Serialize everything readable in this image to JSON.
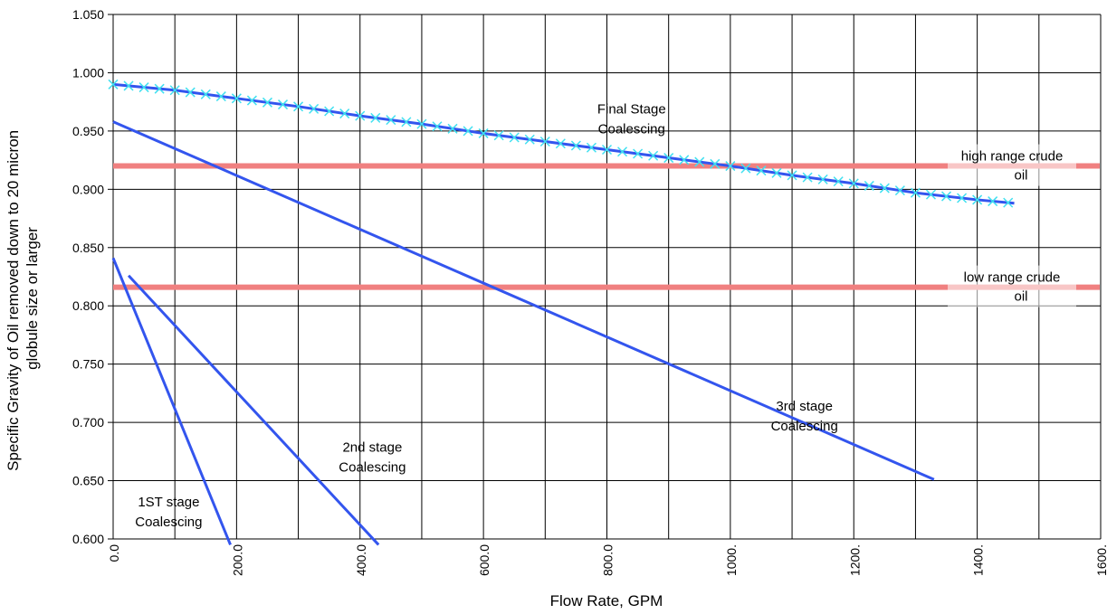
{
  "chart_data": {
    "type": "line",
    "title": "",
    "xlabel": "Flow Rate, GPM",
    "ylabel": [
      "Specific Gravity of Oil removed down to 20 micron",
      "globule size or larger"
    ],
    "xlim": [
      0,
      1600
    ],
    "ylim": [
      0.6,
      1.05
    ],
    "grid": true,
    "x_ticks": [
      {
        "value": 0,
        "label": "0.0"
      },
      {
        "value": 200,
        "label": "200.0"
      },
      {
        "value": 400,
        "label": "400.0"
      },
      {
        "value": 600,
        "label": "600.0"
      },
      {
        "value": 800,
        "label": "800.0"
      },
      {
        "value": 1000,
        "label": "1000."
      },
      {
        "value": 1200,
        "label": "1200."
      },
      {
        "value": 1400,
        "label": "1400."
      },
      {
        "value": 1600,
        "label": "1600."
      }
    ],
    "y_ticks": [
      {
        "value": 0.6,
        "label": "0.600"
      },
      {
        "value": 0.65,
        "label": "0.650"
      },
      {
        "value": 0.7,
        "label": "0.700"
      },
      {
        "value": 0.75,
        "label": "0.750"
      },
      {
        "value": 0.8,
        "label": "0.800"
      },
      {
        "value": 0.85,
        "label": "0.850"
      },
      {
        "value": 0.9,
        "label": "0.900"
      },
      {
        "value": 0.95,
        "label": "0.950"
      },
      {
        "value": 1.0,
        "label": "1.000"
      },
      {
        "value": 1.05,
        "label": "1.050"
      }
    ],
    "series": [
      {
        "id": "final",
        "color": "#3355ee",
        "marker": "x",
        "marker_color": "#40e0f0",
        "x": [
          0,
          100,
          200,
          300,
          400,
          500,
          600,
          700,
          800,
          900,
          1000,
          1100,
          1200,
          1300,
          1400,
          1460
        ],
        "y": [
          0.99,
          0.985,
          0.978,
          0.971,
          0.963,
          0.956,
          0.948,
          0.941,
          0.934,
          0.927,
          0.92,
          0.912,
          0.905,
          0.897,
          0.891,
          0.888
        ]
      },
      {
        "id": "third",
        "color": "#3355ee",
        "x": [
          0,
          1330
        ],
        "y": [
          0.958,
          0.651
        ]
      },
      {
        "id": "second",
        "color": "#3355ee",
        "x": [
          25,
          430
        ],
        "y": [
          0.826,
          0.595
        ]
      },
      {
        "id": "first",
        "color": "#3355ee",
        "x": [
          0,
          190
        ],
        "y": [
          0.841,
          0.595
        ]
      }
    ],
    "reference_lines": [
      {
        "id": "high",
        "y": 0.92,
        "color": "#f08080",
        "label": [
          "high range crude",
          "oil"
        ]
      },
      {
        "id": "low",
        "y": 0.816,
        "color": "#f08080",
        "label": [
          "low range crude",
          "oil"
        ]
      }
    ],
    "annotations": [
      {
        "lines": [
          "Final Stage",
          "Coalescing"
        ],
        "x": 840,
        "y": 0.965
      },
      {
        "lines": [
          "3rd stage",
          "Coalescing"
        ],
        "x": 1120,
        "y": 0.71
      },
      {
        "lines": [
          "2nd stage",
          "Coalescing"
        ],
        "x": 420,
        "y": 0.675
      },
      {
        "lines": [
          "1ST stage",
          "Coalescing"
        ],
        "x": 90,
        "y": 0.628
      }
    ],
    "colors": {
      "grid": "#000000",
      "series": "#3355ee",
      "reference": "#f08080",
      "marker": "#40e0f0"
    }
  }
}
